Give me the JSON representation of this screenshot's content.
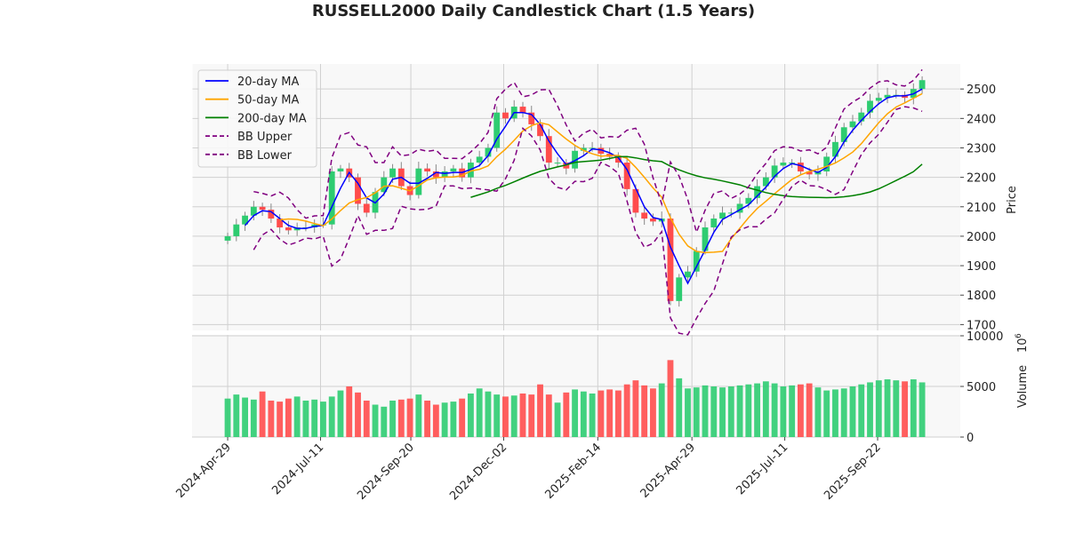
{
  "chart_data": {
    "type": "candlestick",
    "title": "RUSSELL2000 Daily Candlestick Chart (1.5 Years)",
    "ylabel_price": "Price",
    "ylabel_volume": "Volume",
    "volume_exponent": "10",
    "volume_exponent_power": "6",
    "price_ylim": [
      1680,
      2585
    ],
    "price_ticks": [
      "1700",
      "1800",
      "1900",
      "2000",
      "2100",
      "2200",
      "2300",
      "2400",
      "2500"
    ],
    "volume_ylim": [
      0,
      10000
    ],
    "volume_ticks": [
      "0",
      "5000",
      "10000"
    ],
    "x_ticks": [
      {
        "label": "2024-Apr-29",
        "day": 0
      },
      {
        "label": "2024-Jul-11",
        "day": 73
      },
      {
        "label": "2024-Sep-20",
        "day": 144
      },
      {
        "label": "2024-Dec-02",
        "day": 217
      },
      {
        "label": "2025-Feb-14",
        "day": 291
      },
      {
        "label": "2025-Apr-29",
        "day": 365
      },
      {
        "label": "2025-Jul-11",
        "day": 438
      },
      {
        "label": "2025-Sep-22",
        "day": 511
      }
    ],
    "x_range_days": [
      -28,
      576
    ],
    "point_spacing_days": 6.825,
    "closes": [
      2000,
      2040,
      2070,
      2100,
      2090,
      2060,
      2030,
      2020,
      2030,
      2030,
      2040,
      2040,
      2220,
      2230,
      2200,
      2110,
      2080,
      2150,
      2200,
      2230,
      2170,
      2140,
      2230,
      2220,
      2200,
      2220,
      2230,
      2200,
      2250,
      2270,
      2300,
      2420,
      2400,
      2440,
      2420,
      2380,
      2340,
      2250,
      2250,
      2230,
      2290,
      2300,
      2300,
      2280,
      2270,
      2250,
      2160,
      2080,
      2060,
      2050,
      2060,
      1780,
      1860,
      1880,
      1950,
      2030,
      2060,
      2080,
      2080,
      2110,
      2130,
      2170,
      2200,
      2240,
      2250,
      2250,
      2220,
      2210,
      2220,
      2270,
      2320,
      2370,
      2390,
      2420,
      2460,
      2470,
      2480,
      2480,
      2470,
      2500,
      2530
    ],
    "volumes": [
      3800,
      4200,
      3900,
      3700,
      4500,
      3600,
      3500,
      3800,
      4000,
      3600,
      3700,
      3500,
      4000,
      4600,
      5000,
      4400,
      3600,
      3200,
      3000,
      3600,
      3700,
      3800,
      4200,
      3600,
      3200,
      3400,
      3500,
      3800,
      4300,
      4800,
      4500,
      4200,
      4000,
      4100,
      4300,
      4200,
      5200,
      4200,
      3400,
      4400,
      4700,
      4500,
      4300,
      4600,
      4700,
      4600,
      5200,
      5600,
      5100,
      4800,
      5300,
      7600,
      5800,
      4800,
      4900,
      5100,
      5000,
      4900,
      5000,
      5100,
      5200,
      5300,
      5500,
      5300,
      5000,
      5100,
      5200,
      5300,
      4900,
      4600,
      4700,
      4800,
      5000,
      5200,
      5400,
      5600,
      5700,
      5600,
      5500,
      5700,
      5400
    ],
    "legend": [
      {
        "label": "20-day MA",
        "color": "#0000ff",
        "dash": false,
        "window": 3
      },
      {
        "label": "50-day MA",
        "color": "#ffa500",
        "dash": false,
        "window": 7
      },
      {
        "label": "200-day MA",
        "color": "#008000",
        "dash": false,
        "window": 29
      },
      {
        "label": "BB Upper",
        "color": "#800080",
        "dash": true
      },
      {
        "label": "BB Lower",
        "color": "#800080",
        "dash": true
      }
    ],
    "legend_position": "top-left",
    "colors": {
      "up": "#2ecc71",
      "down": "#ff4c4c",
      "grid": "#d0d0d0",
      "bg": "#f8f8f8"
    }
  }
}
